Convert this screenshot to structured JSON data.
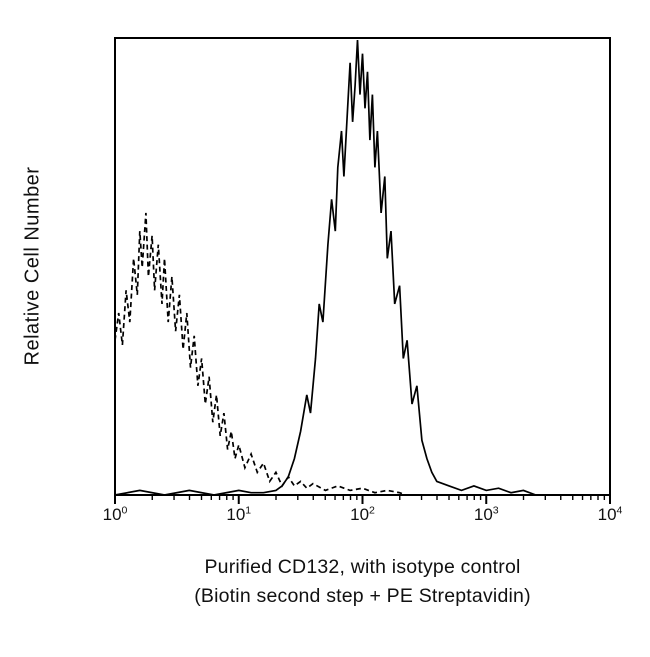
{
  "figure": {
    "kind": "flow-cytometry-histogram",
    "background_color": "#ffffff",
    "line_color": "#000000"
  },
  "chart_data": {
    "type": "line",
    "subtype": "flow-histogram-overlay",
    "title": "",
    "ylabel": "Relative Cell Number",
    "xlabel_lines": [
      "Purified CD132, with isotype control",
      "(Biotin second step + PE Streptavidin)"
    ],
    "x_scale": "log10",
    "xlim_log": [
      0,
      4
    ],
    "ylim": [
      0,
      100
    ],
    "grid": false,
    "legend": "none",
    "x_ticks": [
      {
        "base": "10",
        "exp": "0",
        "log_value": 0
      },
      {
        "base": "10",
        "exp": "1",
        "log_value": 1
      },
      {
        "base": "10",
        "exp": "2",
        "log_value": 2
      },
      {
        "base": "10",
        "exp": "3",
        "log_value": 3
      },
      {
        "base": "10",
        "exp": "4",
        "log_value": 4
      }
    ],
    "minor_ticks_per_decade": [
      2,
      3,
      4,
      5,
      6,
      7,
      8,
      9
    ],
    "series": [
      {
        "name": "isotype control",
        "style": "dashed",
        "color": "#000000",
        "points_logx_ypct": [
          [
            0.0,
            34
          ],
          [
            0.03,
            40
          ],
          [
            0.06,
            33
          ],
          [
            0.09,
            45
          ],
          [
            0.12,
            38
          ],
          [
            0.15,
            52
          ],
          [
            0.18,
            44
          ],
          [
            0.2,
            58
          ],
          [
            0.22,
            50
          ],
          [
            0.25,
            62
          ],
          [
            0.27,
            48
          ],
          [
            0.3,
            57
          ],
          [
            0.32,
            45
          ],
          [
            0.35,
            55
          ],
          [
            0.38,
            42
          ],
          [
            0.4,
            52
          ],
          [
            0.43,
            38
          ],
          [
            0.46,
            48
          ],
          [
            0.49,
            36
          ],
          [
            0.52,
            44
          ],
          [
            0.55,
            32
          ],
          [
            0.58,
            40
          ],
          [
            0.61,
            28
          ],
          [
            0.64,
            35
          ],
          [
            0.67,
            24
          ],
          [
            0.7,
            30
          ],
          [
            0.73,
            20
          ],
          [
            0.76,
            26
          ],
          [
            0.79,
            16
          ],
          [
            0.82,
            22
          ],
          [
            0.85,
            13
          ],
          [
            0.88,
            18
          ],
          [
            0.91,
            10
          ],
          [
            0.94,
            14
          ],
          [
            0.97,
            8
          ],
          [
            1.0,
            11
          ],
          [
            1.05,
            6
          ],
          [
            1.1,
            9
          ],
          [
            1.15,
            5
          ],
          [
            1.2,
            7
          ],
          [
            1.25,
            3
          ],
          [
            1.3,
            5
          ],
          [
            1.35,
            2
          ],
          [
            1.4,
            4
          ],
          [
            1.45,
            2
          ],
          [
            1.5,
            3
          ],
          [
            1.55,
            1.5
          ],
          [
            1.6,
            2.5
          ],
          [
            1.7,
            1
          ],
          [
            1.8,
            2
          ],
          [
            1.9,
            1
          ],
          [
            2.0,
            1.5
          ],
          [
            2.1,
            0.5
          ],
          [
            2.2,
            1
          ],
          [
            2.3,
            0.5
          ],
          [
            2.35,
            0
          ]
        ]
      },
      {
        "name": "Purified CD132",
        "style": "solid",
        "color": "#000000",
        "points_logx_ypct": [
          [
            0.0,
            0
          ],
          [
            0.2,
            1
          ],
          [
            0.4,
            0
          ],
          [
            0.6,
            1
          ],
          [
            0.8,
            0
          ],
          [
            1.0,
            1
          ],
          [
            1.1,
            0.5
          ],
          [
            1.2,
            0.5
          ],
          [
            1.3,
            1
          ],
          [
            1.35,
            2
          ],
          [
            1.4,
            4
          ],
          [
            1.45,
            8
          ],
          [
            1.5,
            14
          ],
          [
            1.55,
            22
          ],
          [
            1.58,
            18
          ],
          [
            1.62,
            30
          ],
          [
            1.65,
            42
          ],
          [
            1.68,
            38
          ],
          [
            1.72,
            55
          ],
          [
            1.75,
            65
          ],
          [
            1.78,
            58
          ],
          [
            1.8,
            72
          ],
          [
            1.83,
            80
          ],
          [
            1.85,
            70
          ],
          [
            1.88,
            85
          ],
          [
            1.9,
            95
          ],
          [
            1.92,
            82
          ],
          [
            1.94,
            90
          ],
          [
            1.96,
            100
          ],
          [
            1.98,
            88
          ],
          [
            2.0,
            97
          ],
          [
            2.02,
            85
          ],
          [
            2.04,
            93
          ],
          [
            2.06,
            78
          ],
          [
            2.08,
            88
          ],
          [
            2.1,
            72
          ],
          [
            2.12,
            80
          ],
          [
            2.15,
            62
          ],
          [
            2.18,
            70
          ],
          [
            2.2,
            52
          ],
          [
            2.23,
            58
          ],
          [
            2.26,
            42
          ],
          [
            2.3,
            46
          ],
          [
            2.33,
            30
          ],
          [
            2.36,
            34
          ],
          [
            2.4,
            20
          ],
          [
            2.44,
            24
          ],
          [
            2.48,
            12
          ],
          [
            2.52,
            8
          ],
          [
            2.56,
            5
          ],
          [
            2.6,
            3
          ],
          [
            2.7,
            2
          ],
          [
            2.8,
            1
          ],
          [
            2.9,
            2
          ],
          [
            3.0,
            1
          ],
          [
            3.1,
            1.5
          ],
          [
            3.2,
            0.5
          ],
          [
            3.3,
            1
          ],
          [
            3.4,
            0
          ]
        ]
      }
    ]
  }
}
